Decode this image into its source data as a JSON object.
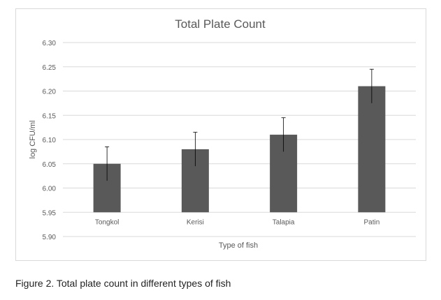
{
  "figure_caption": "Figure 2. Total plate count in different types of fish",
  "chart_data": {
    "type": "bar",
    "title": "Total Plate Count",
    "xlabel": "Type of fish",
    "ylabel": "log CFU/ml",
    "categories": [
      "Tongkol",
      "Kerisi",
      "Talapia",
      "Patin"
    ],
    "values": [
      6.05,
      6.08,
      6.11,
      6.21
    ],
    "error": [
      0.035,
      0.035,
      0.035,
      0.035
    ],
    "ylim": [
      5.9,
      6.3
    ],
    "yticks": [
      "5.90",
      "5.95",
      "6.00",
      "6.05",
      "6.10",
      "6.15",
      "6.20",
      "6.25",
      "6.30"
    ],
    "grid": true,
    "bar_color": "#595959",
    "grid_color": "#d9d9d9",
    "text_color": "#595959"
  }
}
